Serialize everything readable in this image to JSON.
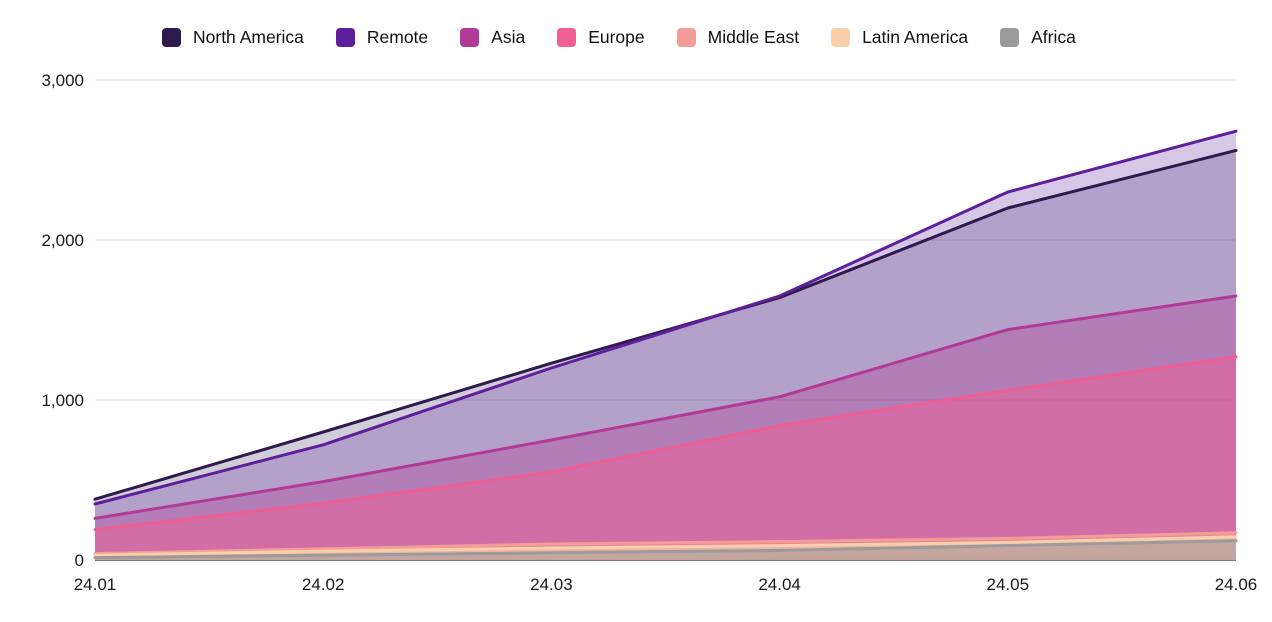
{
  "chart_data": {
    "type": "area",
    "title": "",
    "xlabel": "",
    "ylabel": "",
    "legend_position": "top",
    "grid": true,
    "categories": [
      "24.01",
      "24.02",
      "24.03",
      "24.04",
      "24.05",
      "24.06"
    ],
    "series": [
      {
        "name": "North America",
        "color": "#2f1a4d",
        "fill_opacity": 0.22,
        "values": [
          380,
          800,
          1230,
          1640,
          2200,
          2560
        ]
      },
      {
        "name": "Remote",
        "color": "#5e1f9c",
        "fill_opacity": 0.25,
        "values": [
          350,
          720,
          1200,
          1650,
          2300,
          2680
        ]
      },
      {
        "name": "Asia",
        "color": "#b23a97",
        "fill_opacity": 0.35,
        "values": [
          260,
          490,
          750,
          1020,
          1440,
          1650
        ]
      },
      {
        "name": "Europe",
        "color": "#f05f94",
        "fill_opacity": 0.5,
        "values": [
          190,
          355,
          550,
          840,
          1060,
          1270
        ]
      },
      {
        "name": "Middle East",
        "color": "#f39c98",
        "fill_opacity": 0.5,
        "values": [
          40,
          70,
          100,
          115,
          135,
          170
        ]
      },
      {
        "name": "Latin America",
        "color": "#f9d0a9",
        "fill_opacity": 0.6,
        "values": [
          30,
          55,
          75,
          90,
          110,
          145
        ]
      },
      {
        "name": "Africa",
        "color": "#9b9b9b",
        "fill_opacity": 0.5,
        "values": [
          15,
          30,
          45,
          60,
          90,
          120
        ]
      }
    ],
    "ylim": [
      0,
      3000
    ],
    "yticks": [
      {
        "value": 0,
        "label": "0"
      },
      {
        "value": 1000,
        "label": "1,000"
      },
      {
        "value": 2000,
        "label": "2,000"
      },
      {
        "value": 3000,
        "label": "3,000"
      }
    ],
    "axis_colors": {
      "gridline": "#d9d9d9",
      "zero_line": "#4a4a4a",
      "tick_text": "#1a1a1a"
    }
  }
}
